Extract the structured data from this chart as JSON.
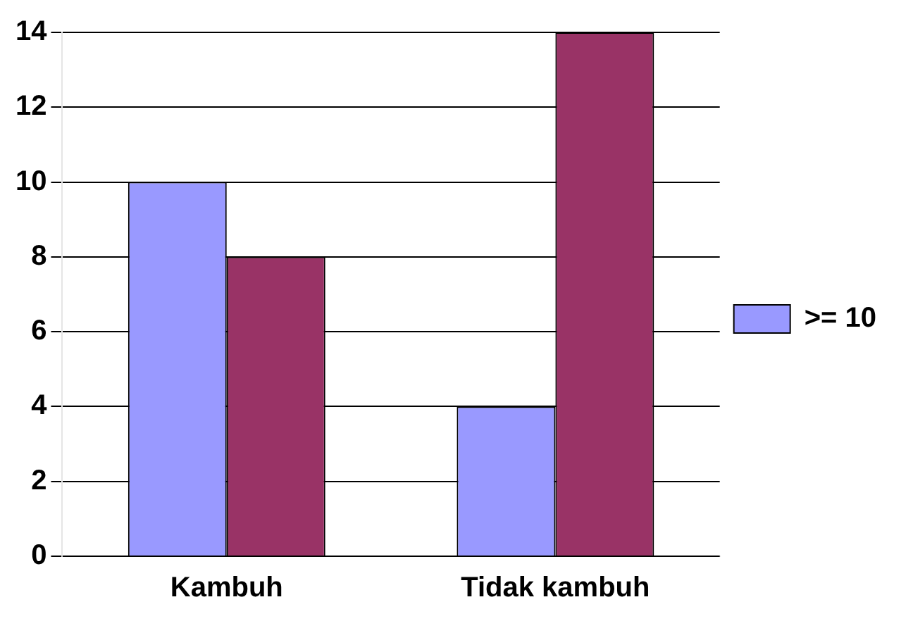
{
  "chart_data": {
    "type": "bar",
    "categories": [
      "Kambuh",
      "Tidak kambuh"
    ],
    "series": [
      {
        "name": ">= 10",
        "color": "#9999ff",
        "values": [
          10,
          4
        ]
      },
      {
        "color": "#993366",
        "values": [
          8,
          14
        ]
      }
    ],
    "ylim": [
      0,
      14
    ],
    "yticks": [
      0,
      2,
      4,
      6,
      8,
      10,
      12,
      14
    ],
    "grid": "y",
    "legend": "right"
  }
}
